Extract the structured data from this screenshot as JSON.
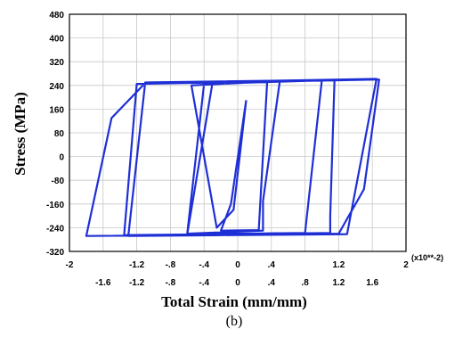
{
  "chart_data": {
    "type": "line",
    "xlabel": "Total Strain (mm/mm)",
    "ylabel": "Stress (MPa)",
    "x_multiplier": "(x10**-2)",
    "caption": "(b)",
    "xlim": [
      -2,
      2
    ],
    "ylim": [
      -320,
      480
    ],
    "x_ticks_top": [
      "-2",
      "-1.2",
      "-.8",
      "-.4",
      "0",
      ".4",
      "1.2",
      "2"
    ],
    "x_ticks_bottom": [
      "-1.6",
      "-1.2",
      "-.8",
      "-.4",
      "0",
      ".4",
      ".8",
      "1.2",
      "1.6"
    ],
    "y_ticks": [
      "480",
      "400",
      "320",
      "240",
      "160",
      "80",
      "0",
      "-80",
      "-160",
      "-240",
      "-320"
    ],
    "grid": true,
    "line_color": "#1f2fd6",
    "series": [
      {
        "values": [
          [
            0.1,
            190
          ],
          [
            -0.08,
            -160
          ],
          [
            -0.2,
            -250
          ],
          [
            0.25,
            -248
          ],
          [
            0.35,
            253
          ],
          [
            -0.3,
            250
          ],
          [
            -0.6,
            -262
          ],
          [
            0.8,
            -258
          ],
          [
            1.0,
            258
          ],
          [
            -1.1,
            250
          ],
          [
            -1.3,
            -268
          ],
          [
            1.3,
            -262
          ],
          [
            1.65,
            262
          ],
          [
            -1.1,
            248
          ],
          [
            -1.5,
            130
          ],
          [
            -1.8,
            -268
          ],
          [
            1.2,
            -260
          ],
          [
            1.5,
            -110
          ],
          [
            1.68,
            260
          ],
          [
            -1.2,
            245
          ],
          [
            -1.35,
            -265
          ],
          [
            1.1,
            -258
          ],
          [
            1.1,
            -200
          ],
          [
            1.15,
            258
          ],
          [
            -0.4,
            245
          ],
          [
            -0.6,
            -260
          ],
          [
            0.3,
            -250
          ],
          [
            0.3,
            -150
          ],
          [
            0.5,
            255
          ],
          [
            -0.55,
            240
          ],
          [
            -0.25,
            -240
          ],
          [
            -0.05,
            -180
          ],
          [
            0.1,
            190
          ]
        ]
      }
    ]
  }
}
